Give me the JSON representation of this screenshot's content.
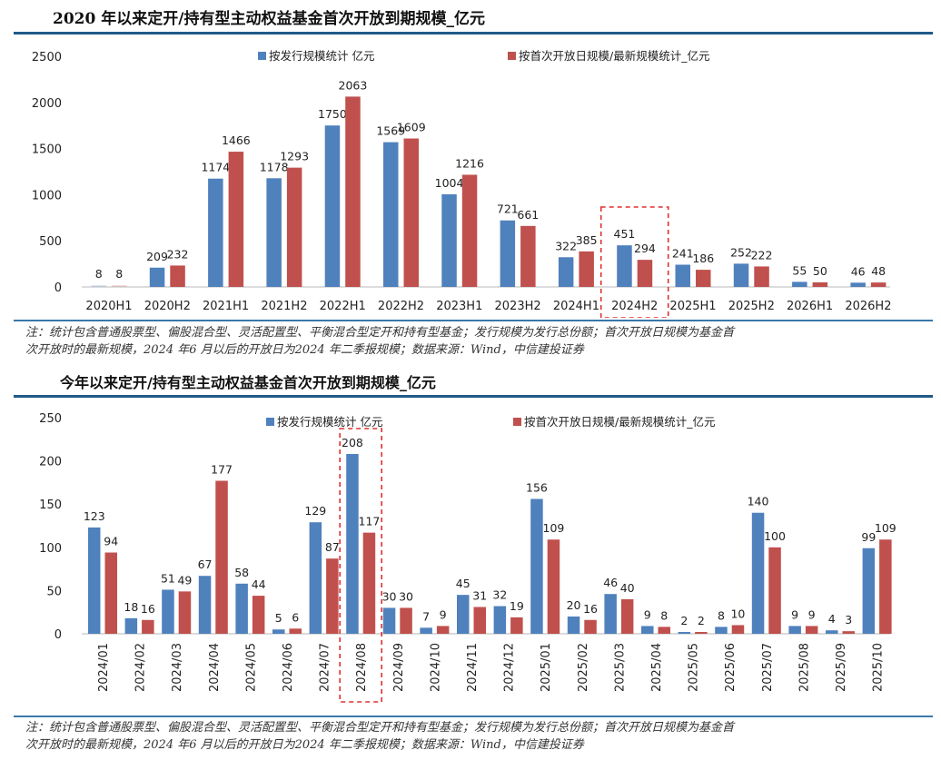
{
  "colors": {
    "series1": "#4f81bd",
    "series2": "#c0504d",
    "highlight": "#e03030",
    "rule": "#1f5a87"
  },
  "chart_data": [
    {
      "type": "bar",
      "title": "2020 年以来定开/持有型主动权益基金首次开放到期规模_亿元",
      "xlabel": "",
      "ylabel": "",
      "ylim": [
        0,
        2500
      ],
      "yticks": [
        0,
        500,
        1000,
        1500,
        2000,
        2500
      ],
      "grid": false,
      "legend_position": "top",
      "categories": [
        "2020H1",
        "2020H2",
        "2021H1",
        "2021H2",
        "2022H1",
        "2022H2",
        "2023H1",
        "2023H2",
        "2024H1",
        "2024H2",
        "2025H1",
        "2025H2",
        "2026H1",
        "2026H2"
      ],
      "series": [
        {
          "name": "按发行规模统计 亿元",
          "values": [
            8,
            209,
            1174,
            1178,
            1750,
            1569,
            1004,
            721,
            322,
            451,
            241,
            252,
            55,
            46
          ]
        },
        {
          "name": "按首次开放日规模/最新规模统计_亿元",
          "values": [
            8,
            232,
            1466,
            1293,
            2063,
            1609,
            1216,
            661,
            385,
            294,
            186,
            222,
            50,
            48
          ]
        }
      ],
      "faded_categories": [
        "2020H1"
      ],
      "highlighted_category": "2024H2"
    },
    {
      "type": "bar",
      "title": "今年以来定开/持有型主动权益基金首次开放到期规模_亿元",
      "xlabel": "",
      "ylabel": "",
      "ylim": [
        0,
        250
      ],
      "yticks": [
        0,
        50,
        100,
        150,
        200,
        250
      ],
      "grid": false,
      "legend_position": "top",
      "categories": [
        "2024/01",
        "2024/02",
        "2024/03",
        "2024/04",
        "2024/05",
        "2024/06",
        "2024/07",
        "2024/08",
        "2024/09",
        "2024/10",
        "2024/11",
        "2024/12",
        "2025/01",
        "2025/02",
        "2025/03",
        "2025/04",
        "2025/05",
        "2025/06",
        "2025/07",
        "2025/08",
        "2025/09",
        "2025/10"
      ],
      "series": [
        {
          "name": "按发行规模统计 亿元",
          "values": [
            123,
            18,
            51,
            67,
            58,
            5,
            129,
            208,
            30,
            7,
            45,
            32,
            156,
            20,
            46,
            9,
            2,
            8,
            140,
            9,
            4,
            99
          ]
        },
        {
          "name": "按首次开放日规模/最新规模统计_亿元",
          "values": [
            94,
            16,
            49,
            177,
            44,
            6,
            87,
            117,
            30,
            9,
            31,
            19,
            109,
            16,
            40,
            8,
            2,
            10,
            100,
            9,
            3,
            109
          ]
        }
      ],
      "highlighted_category": "2024/08"
    }
  ],
  "notes": {
    "note1": [
      "注：统计包含普通股票型、偏股混合型、灵活配置型、平衡混合型定开和持有型基金；发行规模为发行总份额；首次开放日规模为基金首",
      "次开放时的最新规模，2024 年6 月以后的开放日为2024 年二季报规模；数据来源：Wind，中信建投证券"
    ],
    "note2": [
      "注：统计包含普通股票型、偏股混合型、灵活配置型、平衡混合型定开和持有型基金；发行规模为发行总份额；首次开放日规模为基金首",
      "次开放时的最新规模，2024 年6 月以后的开放日为2024 年二季报规模；数据来源：Wind，中信建投证券"
    ]
  }
}
